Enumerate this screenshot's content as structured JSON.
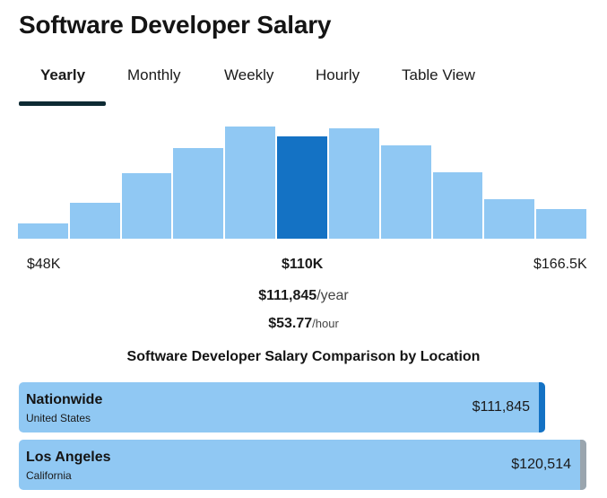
{
  "page": {
    "title": "Software Developer Salary"
  },
  "tabs": [
    {
      "label": "Yearly",
      "active": true
    },
    {
      "label": "Monthly",
      "active": false
    },
    {
      "label": "Weekly",
      "active": false
    },
    {
      "label": "Hourly",
      "active": false
    },
    {
      "label": "Table View",
      "active": false
    }
  ],
  "histogram": {
    "colors": {
      "bar": "#90c8f3",
      "highlight": "#1472c4"
    },
    "highlight_index": 5,
    "relative_heights": [
      0.13,
      0.31,
      0.57,
      0.79,
      0.98,
      0.89,
      0.96,
      0.81,
      0.58,
      0.34,
      0.26
    ],
    "axis": {
      "min_label": "$48K",
      "mid_label": "$110K",
      "max_label": "$166.5K"
    }
  },
  "summary": {
    "yearly_value": "$111,845",
    "yearly_unit": "/year",
    "hourly_value": "$53.77",
    "hourly_unit": "/hour"
  },
  "comparison": {
    "title": "Software Developer Salary Comparison by Location",
    "max_value": 120514,
    "locations": [
      {
        "name": "Nationwide",
        "region": "United States",
        "amount": "$111,845",
        "value": 111845,
        "cap_color": "#1472c4"
      },
      {
        "name": "Los Angeles",
        "region": "California",
        "amount": "$120,514",
        "value": 120514,
        "cap_color": "#9aa5ae"
      }
    ]
  }
}
